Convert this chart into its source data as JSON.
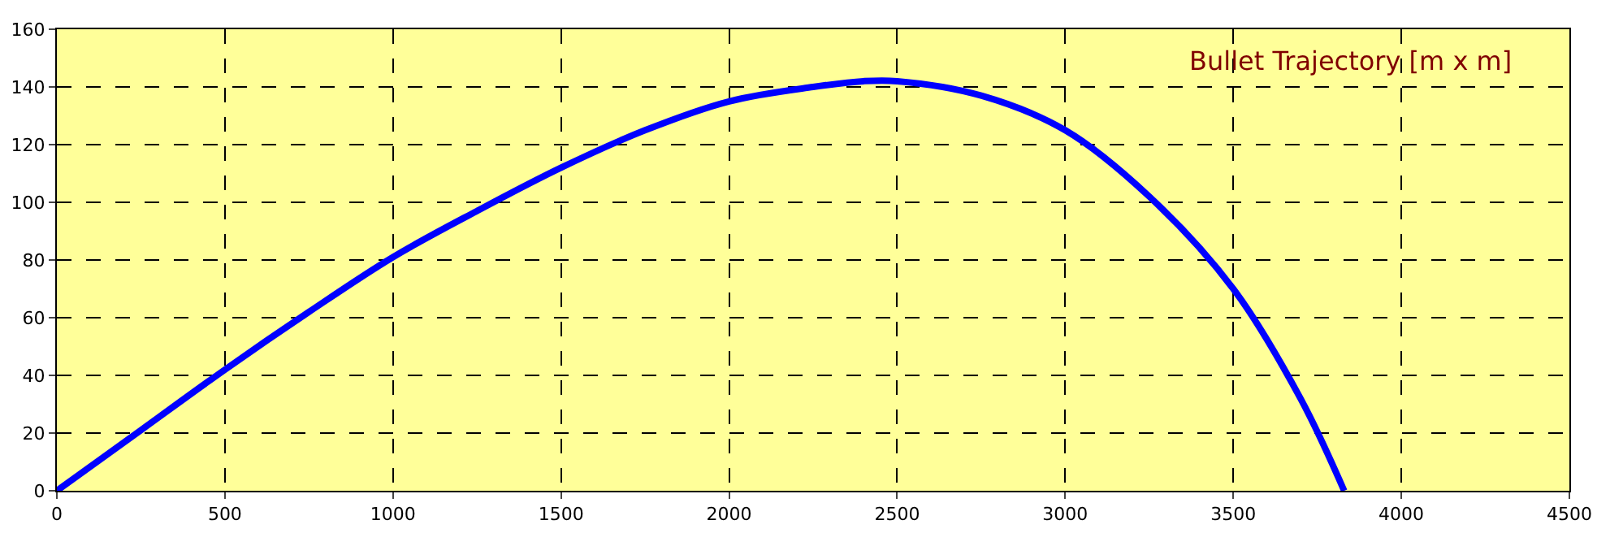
{
  "chart_data": {
    "type": "line",
    "title": "Bullet Trajectory [m x m]",
    "x": [
      0,
      250,
      500,
      750,
      1000,
      1250,
      1500,
      1750,
      2000,
      2250,
      2400,
      2500,
      2750,
      3000,
      3250,
      3500,
      3700,
      3830
    ],
    "series": [
      {
        "color": "#0000ff",
        "values": [
          0,
          21,
          42,
          62,
          81,
          97,
          112,
          125,
          135,
          140,
          142,
          142,
          137,
          125,
          102,
          70,
          32,
          0
        ]
      }
    ],
    "xlim": [
      0,
      4500
    ],
    "xticks": [
      0,
      500,
      1000,
      1500,
      2000,
      2500,
      3000,
      3500,
      4000,
      4500
    ],
    "ylim": [
      0,
      160
    ],
    "yticks": [
      0,
      20,
      40,
      60,
      80,
      100,
      120,
      140,
      160
    ],
    "grid": true,
    "marker": "none",
    "line_style": "solid"
  }
}
